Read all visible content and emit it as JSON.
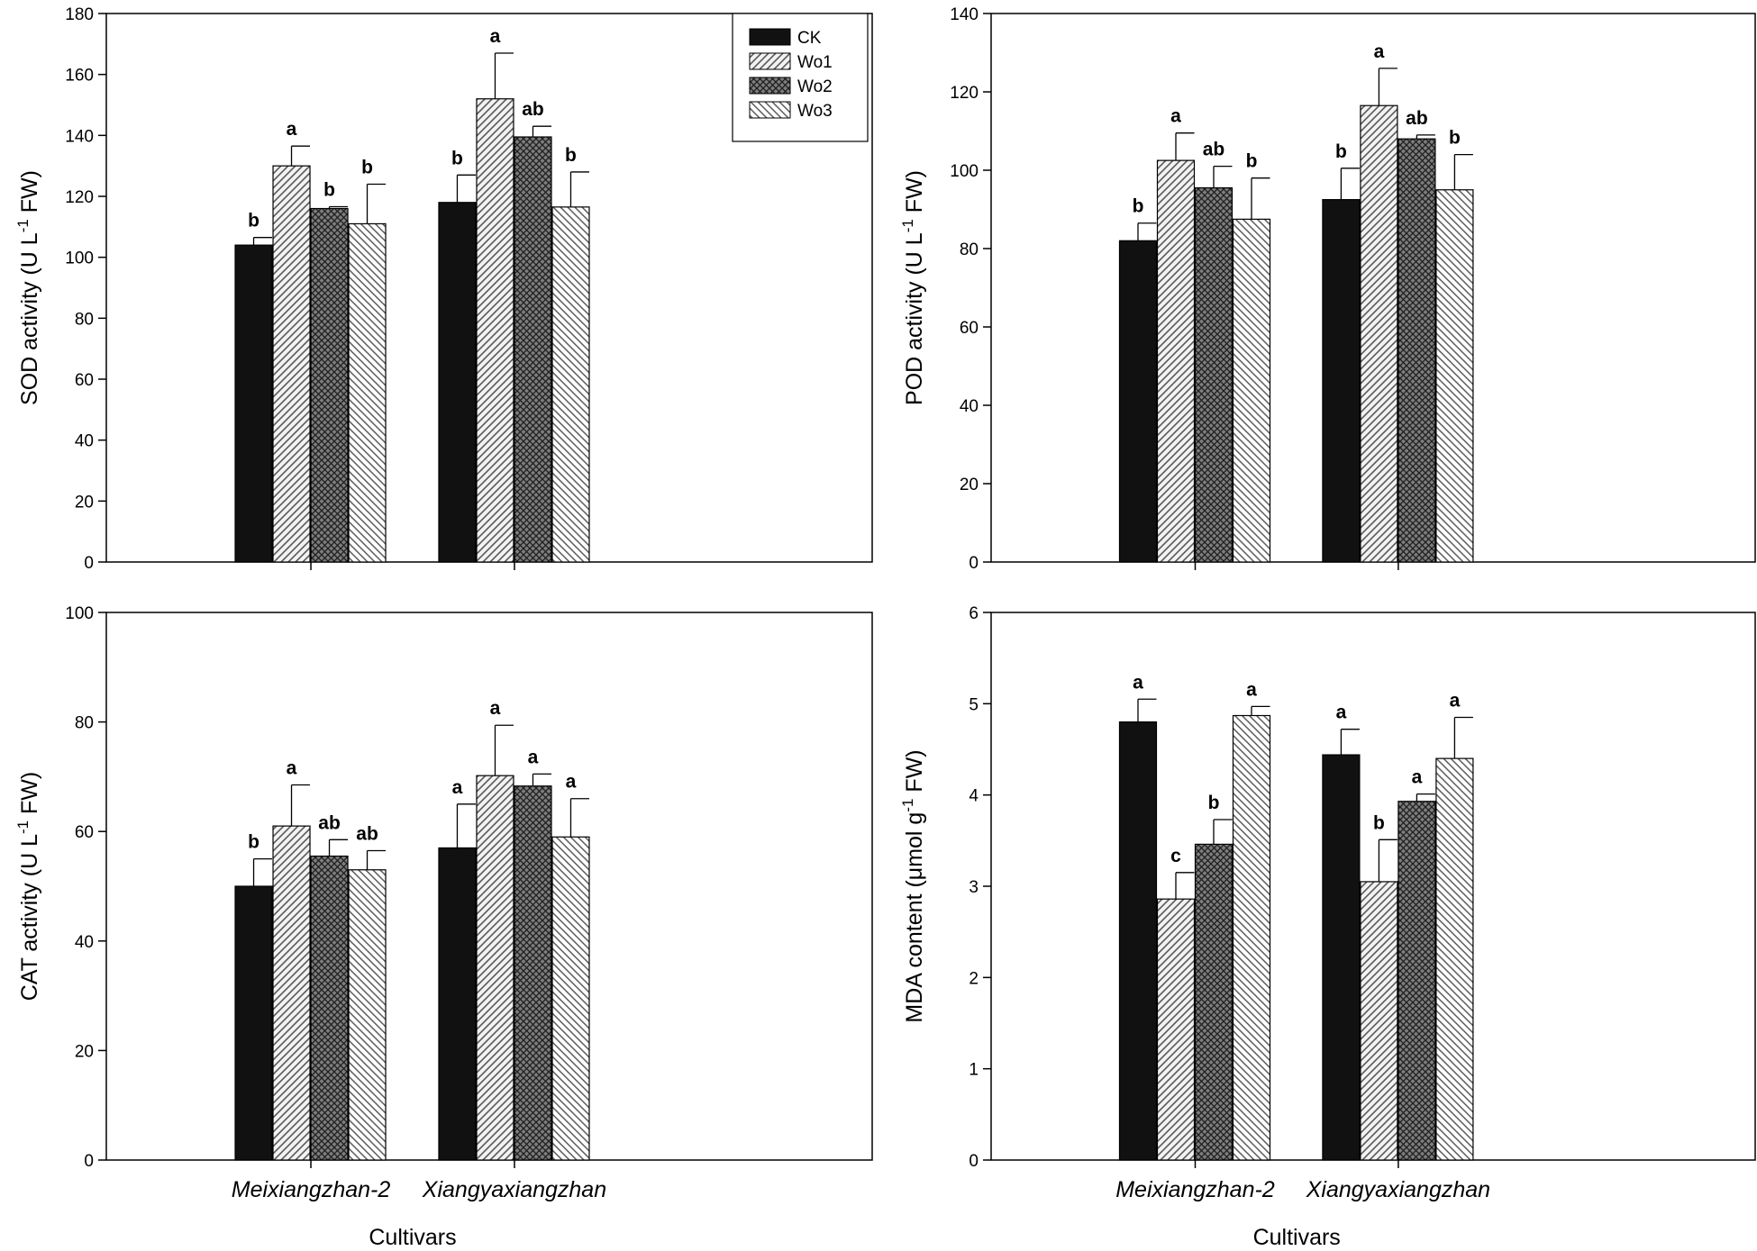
{
  "chart_data": [
    {
      "type": "bar",
      "id": "sod",
      "ylabel": "SOD activity (U L⁻¹ FW)",
      "xlabel": "",
      "ylim": [
        0,
        180
      ],
      "yticks": [
        0,
        20,
        40,
        60,
        80,
        100,
        120,
        140,
        160,
        180
      ],
      "categories": [
        "Meixiangzhan-2",
        "Xiangyaxiangzhan"
      ],
      "show_category_labels": false,
      "legend": true,
      "series": [
        {
          "name": "CK",
          "pattern": "solid",
          "values": [
            104,
            118
          ],
          "errors": [
            2.5,
            9
          ],
          "letters": [
            "b",
            "b"
          ]
        },
        {
          "name": "Wo1",
          "pattern": "diag-fwd",
          "values": [
            130,
            152
          ],
          "errors": [
            6.5,
            15
          ],
          "letters": [
            "a",
            "a"
          ]
        },
        {
          "name": "Wo2",
          "pattern": "crosshatch",
          "values": [
            116,
            139.5
          ],
          "errors": [
            0.6,
            3.5
          ],
          "letters": [
            "b",
            "ab"
          ]
        },
        {
          "name": "Wo3",
          "pattern": "diag-back",
          "values": [
            111,
            116.5
          ],
          "errors": [
            13,
            11.5
          ],
          "letters": [
            "b",
            "b"
          ]
        }
      ]
    },
    {
      "type": "bar",
      "id": "pod",
      "ylabel": "POD activity (U L⁻¹ FW)",
      "xlabel": "",
      "ylim": [
        0,
        140
      ],
      "yticks": [
        0,
        20,
        40,
        60,
        80,
        100,
        120,
        140
      ],
      "categories": [
        "Meixiangzhan-2",
        "Xiangyaxiangzhan"
      ],
      "show_category_labels": false,
      "legend": false,
      "series": [
        {
          "name": "CK",
          "pattern": "solid",
          "values": [
            82,
            92.5
          ],
          "errors": [
            4.5,
            8
          ],
          "letters": [
            "b",
            "b"
          ]
        },
        {
          "name": "Wo1",
          "pattern": "diag-fwd",
          "values": [
            102.5,
            116.5
          ],
          "errors": [
            7,
            9.5
          ],
          "letters": [
            "a",
            "a"
          ]
        },
        {
          "name": "Wo2",
          "pattern": "crosshatch",
          "values": [
            95.5,
            108
          ],
          "errors": [
            5.5,
            1
          ],
          "letters": [
            "ab",
            "ab"
          ]
        },
        {
          "name": "Wo3",
          "pattern": "diag-back",
          "values": [
            87.5,
            95
          ],
          "errors": [
            10.5,
            9
          ],
          "letters": [
            "b",
            "b"
          ]
        }
      ]
    },
    {
      "type": "bar",
      "id": "cat",
      "ylabel": "CAT activity (U L⁻¹ FW)",
      "xlabel": "Cultivars",
      "ylim": [
        0,
        100
      ],
      "yticks": [
        0,
        20,
        40,
        60,
        80,
        100
      ],
      "categories": [
        "Meixiangzhan-2",
        "Xiangyaxiangzhan"
      ],
      "show_category_labels": true,
      "legend": false,
      "series": [
        {
          "name": "CK",
          "pattern": "solid",
          "values": [
            50,
            57
          ],
          "errors": [
            5,
            8
          ],
          "letters": [
            "b",
            "a"
          ]
        },
        {
          "name": "Wo1",
          "pattern": "diag-fwd",
          "values": [
            61,
            70.2
          ],
          "errors": [
            7.5,
            9.2
          ],
          "letters": [
            "a",
            "a"
          ]
        },
        {
          "name": "Wo2",
          "pattern": "crosshatch",
          "values": [
            55.5,
            68.3
          ],
          "errors": [
            3,
            2.2
          ],
          "letters": [
            "ab",
            "a"
          ]
        },
        {
          "name": "Wo3",
          "pattern": "diag-back",
          "values": [
            53,
            59
          ],
          "errors": [
            3.5,
            7
          ],
          "letters": [
            "ab",
            "a"
          ]
        }
      ]
    },
    {
      "type": "bar",
      "id": "mda",
      "ylabel": "MDA content (μmol g⁻¹ FW)",
      "xlabel": "Cultivars",
      "ylim": [
        0,
        6
      ],
      "yticks": [
        0,
        1,
        2,
        3,
        4,
        5,
        6
      ],
      "categories": [
        "Meixiangzhan-2",
        "Xiangyaxiangzhan"
      ],
      "show_category_labels": true,
      "legend": false,
      "series": [
        {
          "name": "CK",
          "pattern": "solid",
          "values": [
            4.8,
            4.44
          ],
          "errors": [
            0.25,
            0.28
          ],
          "letters": [
            "a",
            "a"
          ]
        },
        {
          "name": "Wo1",
          "pattern": "diag-fwd",
          "values": [
            2.86,
            3.05
          ],
          "errors": [
            0.29,
            0.46
          ],
          "letters": [
            "c",
            "b"
          ]
        },
        {
          "name": "Wo2",
          "pattern": "crosshatch",
          "values": [
            3.46,
            3.93
          ],
          "errors": [
            0.27,
            0.08
          ],
          "letters": [
            "b",
            "a"
          ]
        },
        {
          "name": "Wo3",
          "pattern": "diag-back",
          "values": [
            4.87,
            4.4
          ],
          "errors": [
            0.1,
            0.45
          ],
          "letters": [
            "a",
            "a"
          ]
        }
      ]
    }
  ]
}
